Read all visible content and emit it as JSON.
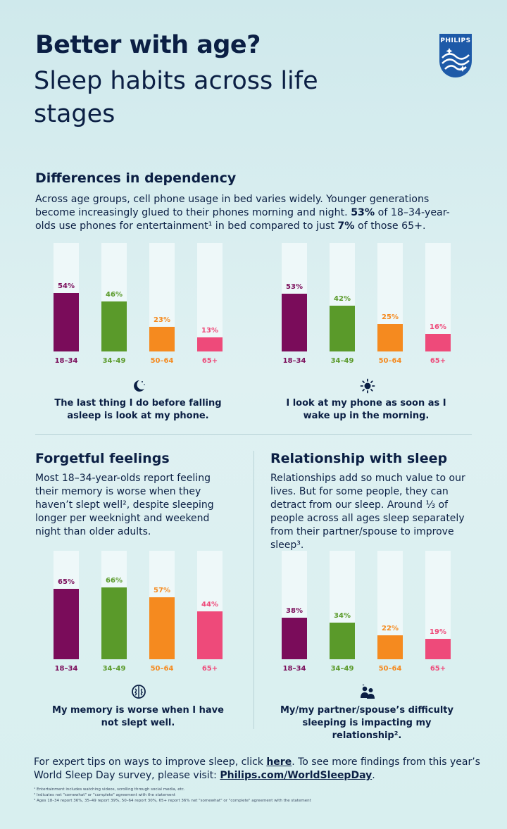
{
  "header": {
    "title_bold": "Better with age?",
    "title_light": "Sleep habits across life stages"
  },
  "logo": {
    "text": "PHILIPS",
    "color": "#1e5aa8"
  },
  "colors": {
    "18–34": "#7a0c5a",
    "34–49": "#5a9a2a",
    "50–64": "#f58a1f",
    "65+": "#ee4a7a",
    "track": "#eef8f9"
  },
  "section1": {
    "heading": "Differences in dependency",
    "body_1": "Across age groups, cell phone usage in bed varies widely. Younger generations become increasingly glued to their phones morning and night. ",
    "body_bold_1": "53%",
    "body_2": " of 18–34-year-olds use phones for entertainment¹ in bed compared to just ",
    "body_bold_2": "7%",
    "body_3": " of those 65+."
  },
  "section2": {
    "heading": "Forgetful feelings",
    "body": "Most 18–34-year-olds report feeling their memory is worse when they haven’t slept well², despite sleeping longer per weeknight and weekend night than older adults."
  },
  "section3": {
    "heading": "Relationship with sleep",
    "body": "Relationships add so much value to our lives. But for some people, they can detract from our sleep. Around ⅓ of people across all ages sleep separately from their partner/spouse to improve sleep³."
  },
  "chart_data": [
    {
      "type": "bar",
      "categories": [
        "18–34",
        "34–49",
        "50–64",
        "65+"
      ],
      "values": [
        54,
        46,
        23,
        13
      ],
      "value_labels": [
        "54%",
        "46%",
        "23%",
        "13%"
      ],
      "ylim": [
        0,
        100
      ],
      "icon": "moon-icon",
      "caption": "The last thing I do before falling asleep is look at my phone."
    },
    {
      "type": "bar",
      "categories": [
        "18–34",
        "34–49",
        "50–64",
        "65+"
      ],
      "values": [
        53,
        42,
        25,
        16
      ],
      "value_labels": [
        "53%",
        "42%",
        "25%",
        "16%"
      ],
      "ylim": [
        0,
        100
      ],
      "icon": "sun-icon",
      "caption": "I look at my phone as soon as I wake up in the morning."
    },
    {
      "type": "bar",
      "categories": [
        "18–34",
        "34–49",
        "50–64",
        "65+"
      ],
      "values": [
        65,
        66,
        57,
        44
      ],
      "value_labels": [
        "65%",
        "66%",
        "57%",
        "44%"
      ],
      "ylim": [
        0,
        100
      ],
      "icon": "brain-icon",
      "caption": "My memory is worse when I have not slept well."
    },
    {
      "type": "bar",
      "categories": [
        "18–34",
        "34–49",
        "50–64",
        "65+"
      ],
      "values": [
        38,
        34,
        22,
        19
      ],
      "value_labels": [
        "38%",
        "34%",
        "22%",
        "19%"
      ],
      "ylim": [
        0,
        100
      ],
      "icon": "couple-icon",
      "caption": "My/my partner/spouse’s difficulty sleeping is impacting my relationship²."
    }
  ],
  "footer": {
    "text_1": "For expert tips on ways to improve sleep, click ",
    "link_1": "here",
    "text_2": ". To see more findings from this year’s World Sleep Day survey, please visit: ",
    "link_2": "Philips.com/WorldSleepDay",
    "text_3": "."
  },
  "footnotes": [
    "¹ Entertainment includes watching videos, scrolling through social media, etc.",
    "² Indicates net \"somewhat\" or \"complete\" agreement with the statement",
    "³ Ages 18–34 report 36%, 35–49 report 39%, 50–64 report 30%, 65+ report 36% net \"somewhat\" or \"complete\" agreement with the statement"
  ]
}
